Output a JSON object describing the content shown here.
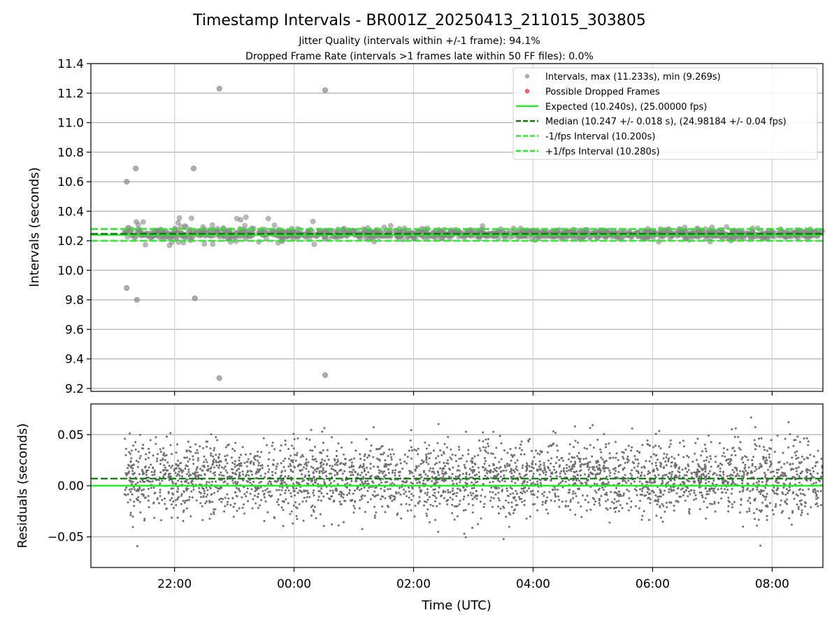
{
  "chart_data": {
    "type": "scatter",
    "title": "Timestamp Intervals - BR001Z_20250413_211015_303805",
    "subtitle_lines": [
      "Jitter Quality (intervals within +/-1 frame): 94.1%",
      "Dropped Frame Rate (intervals >1 frames late within 50 FF files): 0.0%"
    ],
    "xlabel": "Time (UTC)",
    "x_unit": "hours relative to 00:00 UTC (2025-04-14)",
    "xlim": [
      -3.4,
      8.85
    ],
    "x_ticks": [
      {
        "v": -2,
        "label": "22:00"
      },
      {
        "v": 0,
        "label": "00:00"
      },
      {
        "v": 2,
        "label": "02:00"
      },
      {
        "v": 4,
        "label": "04:00"
      },
      {
        "v": 6,
        "label": "06:00"
      },
      {
        "v": 8,
        "label": "08:00"
      }
    ],
    "colors": {
      "intervals": "#8c8c8c",
      "dropped": "#e83030",
      "expected": "#22ee22",
      "median": "#0a7a0a",
      "fps_band": "#22ee22",
      "residuals": "#6e6e6e"
    },
    "top_panel": {
      "ylabel": "Intervals (seconds)",
      "ylim": [
        9.18,
        11.4
      ],
      "y_ticks": [
        9.2,
        9.4,
        9.6,
        9.8,
        10.0,
        10.2,
        10.4,
        10.6,
        10.8,
        11.0,
        11.2,
        11.4
      ],
      "grid": true,
      "lines": {
        "expected": 10.24,
        "median": 10.247,
        "minus_fps": 10.2,
        "plus_fps": 10.28
      },
      "x_start": -2.85,
      "x_end": 8.85,
      "outliers": [
        {
          "x": -2.8,
          "y": 10.6
        },
        {
          "x": -2.65,
          "y": 10.69
        },
        {
          "x": -2.8,
          "y": 9.88
        },
        {
          "x": -2.63,
          "y": 9.8
        },
        {
          "x": -1.68,
          "y": 10.69
        },
        {
          "x": -1.66,
          "y": 9.81
        },
        {
          "x": -1.25,
          "y": 11.23
        },
        {
          "x": -1.25,
          "y": 9.27
        },
        {
          "x": 0.52,
          "y": 11.22
        },
        {
          "x": 0.52,
          "y": 9.29
        }
      ],
      "legend": {
        "placement": "top-right",
        "entries": [
          "Intervals, max (11.233s), min (9.269s)",
          "Possible Dropped Frames",
          "Expected (10.240s), (25.00000 fps)",
          "Median (10.247 +/- 0.018 s), (24.98184 +/- 0.04 fps)",
          "-1/fps Interval (10.200s)",
          "+1/fps Interval (10.280s)"
        ]
      }
    },
    "bottom_panel": {
      "ylabel": "Residuals (seconds)",
      "ylim": [
        -0.08,
        0.08
      ],
      "y_ticks": [
        {
          "v": -0.05,
          "label": "−0.05"
        },
        {
          "v": 0.0,
          "label": "0.00"
        },
        {
          "v": 0.05,
          "label": "0.05"
        }
      ],
      "grid": true,
      "lines": {
        "expected": 0.0,
        "median": 0.007
      }
    }
  }
}
